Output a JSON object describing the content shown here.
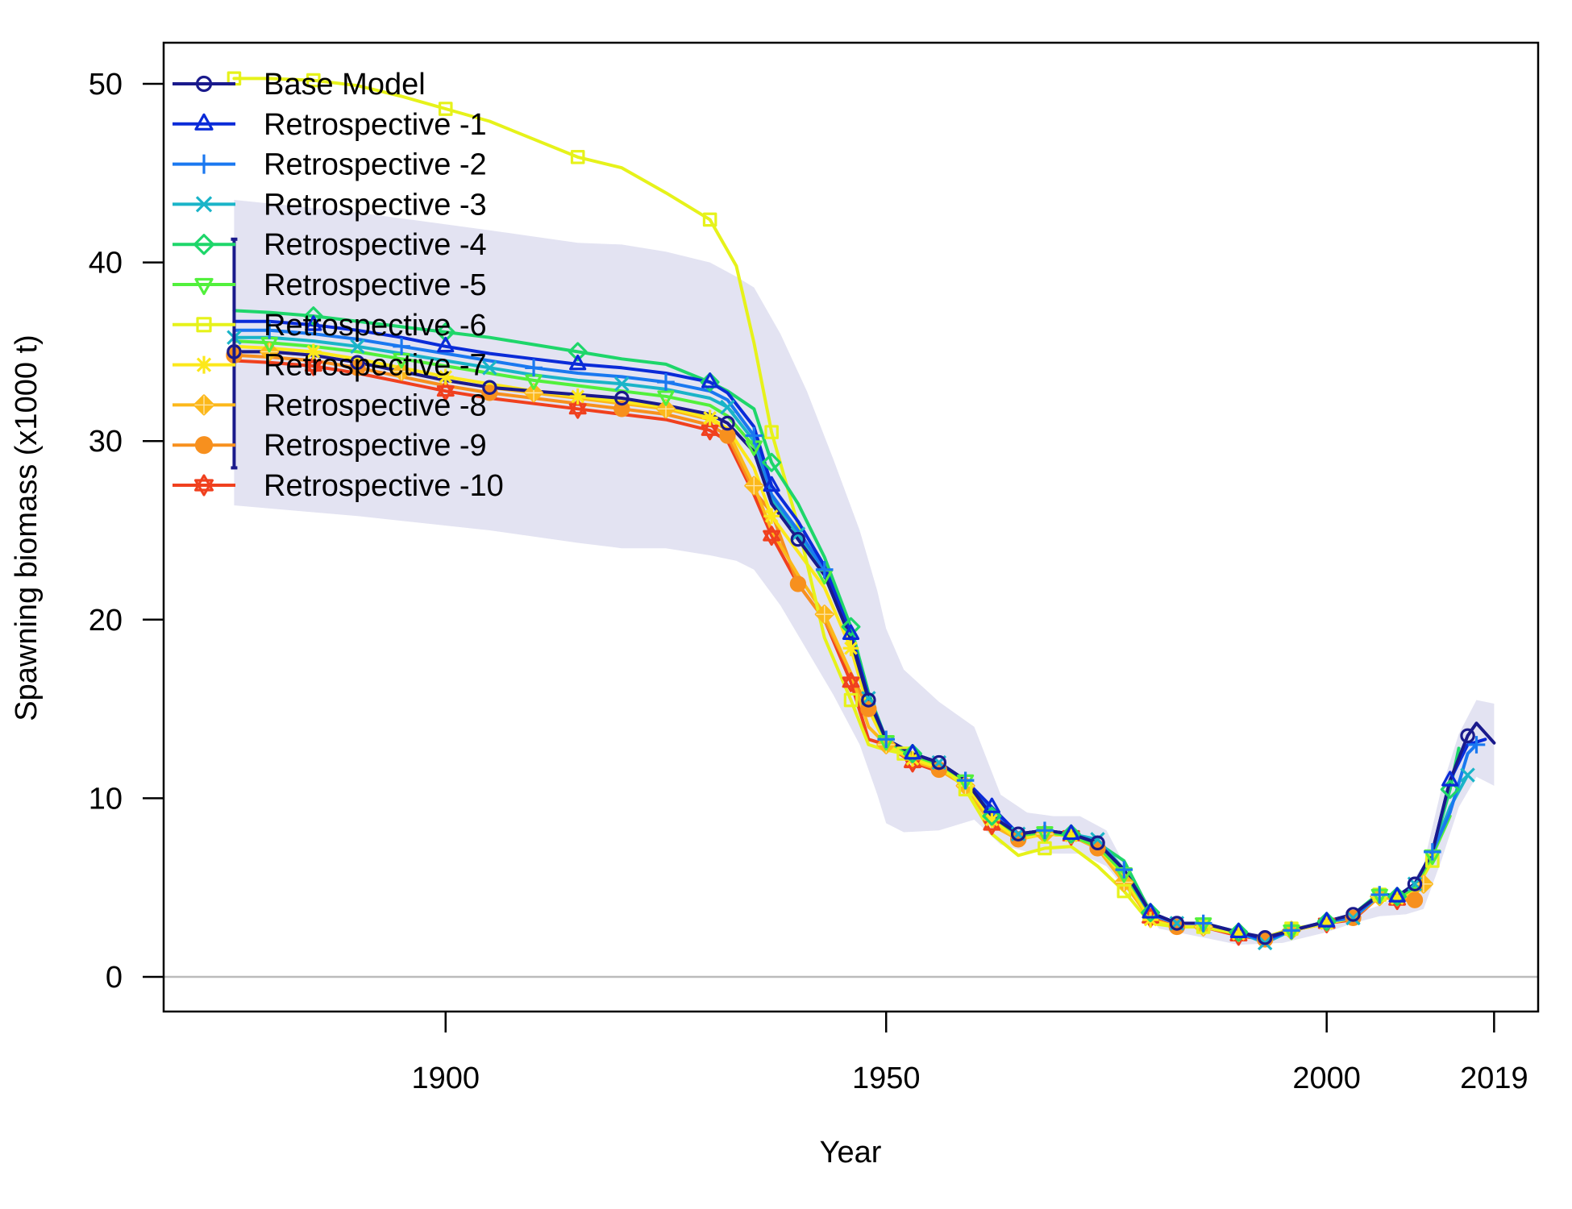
{
  "chart_data": {
    "type": "line",
    "xlabel": "Year",
    "ylabel": "Spawning biomass (x1000 t)",
    "x_ticks": [
      1900,
      1950,
      2000,
      2019
    ],
    "y_ticks": [
      0,
      10,
      20,
      30,
      40,
      50
    ],
    "xlim": [
      1868,
      2024
    ],
    "ylim": [
      -2,
      52
    ],
    "legend_position": "top-left",
    "confidence_band": {
      "color": "#E3E3F2",
      "x": [
        1876,
        1890,
        1905,
        1915,
        1920,
        1925,
        1930,
        1933,
        1935,
        1938,
        1941,
        1944,
        1947,
        1949,
        1950,
        1952,
        1956,
        1960,
        1963,
        1966,
        1969,
        1972,
        1975,
        1978,
        1981,
        1985,
        1990,
        1995,
        2000,
        2003,
        2006,
        2009,
        2011,
        2013,
        2015,
        2017,
        2019
      ],
      "lower": [
        26.4,
        25.8,
        25.0,
        24.3,
        24.0,
        24.0,
        23.6,
        23.3,
        22.8,
        20.8,
        18.3,
        15.8,
        13.0,
        10.2,
        8.6,
        8.1,
        8.2,
        8.8,
        7.4,
        7.0,
        6.9,
        6.9,
        6.2,
        4.4,
        2.7,
        2.3,
        1.8,
        1.9,
        2.5,
        3.0,
        3.4,
        3.5,
        3.8,
        6.5,
        9.5,
        11.2,
        10.7
      ],
      "upper": [
        43.5,
        42.8,
        41.8,
        41.1,
        41.0,
        40.6,
        40.0,
        39.2,
        38.6,
        36.0,
        32.8,
        29.0,
        25.0,
        21.6,
        19.5,
        17.2,
        15.4,
        14.0,
        10.2,
        9.2,
        9.0,
        9.0,
        8.2,
        5.4,
        3.3,
        2.9,
        2.4,
        2.5,
        3.2,
        3.5,
        4.0,
        4.8,
        6.3,
        10.5,
        13.6,
        15.5,
        15.3
      ]
    },
    "series": [
      {
        "name": "Base Model",
        "color": "#1A1A8C",
        "marker": "circle",
        "x": [
          1876,
          1880,
          1885,
          1890,
          1895,
          1900,
          1905,
          1910,
          1915,
          1920,
          1925,
          1930,
          1932,
          1935,
          1937,
          1940,
          1943,
          1946,
          1948,
          1950,
          1953,
          1956,
          1959,
          1962,
          1965,
          1968,
          1971,
          1974,
          1977,
          1980,
          1983,
          1986,
          1990,
          1993,
          1996,
          2000,
          2003,
          2006,
          2008,
          2010,
          2012,
          2014,
          2016,
          2017,
          2019
        ],
        "y": [
          35.0,
          35.0,
          34.8,
          34.4,
          33.9,
          33.4,
          33.0,
          32.8,
          32.6,
          32.4,
          32.0,
          31.5,
          31.0,
          29.4,
          26.5,
          24.5,
          22.5,
          18.9,
          15.5,
          13.3,
          12.5,
          12.0,
          11.0,
          9.0,
          8.0,
          8.2,
          8.0,
          7.5,
          6.0,
          3.6,
          3.0,
          3.0,
          2.5,
          2.2,
          2.6,
          3.1,
          3.5,
          4.6,
          4.5,
          5.2,
          7.0,
          11.0,
          13.5,
          14.2,
          13.1
        ]
      },
      {
        "name": "Retrospective -1",
        "color": "#0A2BD8",
        "marker": "triangle-up",
        "x": [
          1876,
          1880,
          1885,
          1890,
          1895,
          1900,
          1905,
          1910,
          1915,
          1920,
          1925,
          1930,
          1932,
          1935,
          1937,
          1940,
          1943,
          1946,
          1948,
          1950,
          1953,
          1956,
          1959,
          1962,
          1965,
          1968,
          1971,
          1974,
          1977,
          1980,
          1983,
          1986,
          1990,
          1993,
          1996,
          2000,
          2003,
          2006,
          2008,
          2010,
          2012,
          2014,
          2016,
          2018
        ],
        "y": [
          36.7,
          36.7,
          36.5,
          36.2,
          35.8,
          35.3,
          34.9,
          34.6,
          34.3,
          34.1,
          33.8,
          33.3,
          32.7,
          30.8,
          27.5,
          25.5,
          23.0,
          19.2,
          15.7,
          13.3,
          12.5,
          12.0,
          11.0,
          9.5,
          8.0,
          8.2,
          8.0,
          7.5,
          6.0,
          3.6,
          3.0,
          3.0,
          2.5,
          2.1,
          2.6,
          3.1,
          3.5,
          4.6,
          4.5,
          5.2,
          7.0,
          11.0,
          13.0,
          13.3
        ]
      },
      {
        "name": "Retrospective -2",
        "color": "#1A78F0",
        "marker": "plus",
        "x": [
          1876,
          1880,
          1885,
          1890,
          1895,
          1900,
          1905,
          1910,
          1915,
          1920,
          1925,
          1930,
          1932,
          1935,
          1937,
          1940,
          1943,
          1946,
          1948,
          1950,
          1953,
          1956,
          1959,
          1962,
          1965,
          1968,
          1971,
          1974,
          1977,
          1980,
          1983,
          1986,
          1990,
          1993,
          1996,
          2000,
          2003,
          2006,
          2008,
          2010,
          2012,
          2014,
          2016,
          2017
        ],
        "y": [
          36.2,
          36.2,
          36.0,
          35.7,
          35.3,
          34.9,
          34.5,
          34.1,
          33.8,
          33.6,
          33.3,
          32.8,
          32.3,
          30.3,
          27.0,
          25.0,
          22.8,
          19.1,
          15.6,
          13.3,
          12.5,
          12.0,
          11.0,
          9.2,
          8.0,
          8.2,
          8.0,
          7.5,
          6.0,
          3.5,
          3.0,
          3.0,
          2.5,
          2.0,
          2.6,
          3.1,
          3.3,
          4.6,
          4.5,
          5.2,
          7.0,
          9.2,
          12.5,
          13.0
        ]
      },
      {
        "name": "Retrospective -3",
        "color": "#1AB4C8",
        "marker": "cross",
        "x": [
          1876,
          1880,
          1885,
          1890,
          1895,
          1900,
          1905,
          1910,
          1915,
          1920,
          1925,
          1930,
          1932,
          1935,
          1937,
          1940,
          1943,
          1946,
          1948,
          1950,
          1953,
          1956,
          1959,
          1962,
          1965,
          1968,
          1971,
          1974,
          1977,
          1980,
          1983,
          1986,
          1990,
          1993,
          1996,
          2000,
          2003,
          2006,
          2008,
          2010,
          2012,
          2014,
          2016
        ],
        "y": [
          35.8,
          35.8,
          35.6,
          35.3,
          34.9,
          34.5,
          34.1,
          33.7,
          33.4,
          33.2,
          32.9,
          32.4,
          31.9,
          30.0,
          26.8,
          24.8,
          22.7,
          19.0,
          15.6,
          13.3,
          12.5,
          12.0,
          11.0,
          9.0,
          8.0,
          8.2,
          8.0,
          7.7,
          6.0,
          3.6,
          3.0,
          3.0,
          2.5,
          1.9,
          2.6,
          3.1,
          3.3,
          4.6,
          4.5,
          5.2,
          7.0,
          9.5,
          11.3
        ]
      },
      {
        "name": "Retrospective -4",
        "color": "#1ED66A",
        "marker": "diamond",
        "x": [
          1876,
          1880,
          1885,
          1890,
          1895,
          1900,
          1905,
          1910,
          1915,
          1920,
          1925,
          1930,
          1932,
          1935,
          1937,
          1940,
          1943,
          1946,
          1948,
          1950,
          1953,
          1956,
          1959,
          1962,
          1965,
          1968,
          1971,
          1974,
          1977,
          1980,
          1983,
          1986,
          1990,
          1993,
          1996,
          2000,
          2003,
          2006,
          2008,
          2010,
          2012,
          2014,
          2015
        ],
        "y": [
          37.3,
          37.2,
          37.0,
          36.7,
          36.4,
          36.1,
          35.8,
          35.4,
          35.0,
          34.6,
          34.3,
          33.3,
          32.8,
          31.8,
          28.8,
          26.5,
          23.5,
          19.6,
          15.9,
          13.3,
          12.5,
          12.0,
          11.0,
          9.0,
          8.0,
          8.2,
          8.0,
          7.5,
          6.5,
          3.6,
          3.0,
          3.0,
          2.5,
          2.0,
          2.6,
          3.1,
          3.5,
          4.7,
          4.5,
          5.2,
          7.0,
          10.5,
          12.8
        ]
      },
      {
        "name": "Retrospective -5",
        "color": "#52F03C",
        "marker": "triangle-down",
        "x": [
          1876,
          1880,
          1885,
          1890,
          1895,
          1900,
          1905,
          1910,
          1915,
          1920,
          1925,
          1930,
          1932,
          1935,
          1937,
          1940,
          1943,
          1946,
          1948,
          1950,
          1953,
          1956,
          1959,
          1962,
          1965,
          1968,
          1971,
          1974,
          1977,
          1980,
          1983,
          1986,
          1990,
          1993,
          1996,
          2000,
          2003,
          2006,
          2008,
          2010,
          2012,
          2014
        ],
        "y": [
          35.6,
          35.5,
          35.3,
          35.0,
          34.6,
          34.2,
          33.8,
          33.4,
          33.1,
          32.8,
          32.5,
          32.0,
          31.4,
          29.7,
          26.6,
          24.7,
          22.5,
          18.9,
          15.5,
          13.2,
          12.4,
          11.9,
          11.0,
          9.0,
          7.9,
          8.1,
          7.9,
          7.3,
          5.8,
          3.5,
          3.0,
          3.0,
          2.5,
          2.1,
          2.6,
          3.1,
          3.4,
          4.6,
          4.4,
          5.0,
          6.8,
          9.0
        ]
      },
      {
        "name": "Retrospective -6",
        "color": "#E6F21A",
        "marker": "square",
        "x": [
          1876,
          1878,
          1880,
          1885,
          1890,
          1895,
          1900,
          1905,
          1910,
          1915,
          1920,
          1925,
          1930,
          1933,
          1935,
          1937,
          1940,
          1943,
          1946,
          1948,
          1950,
          1952,
          1955,
          1957,
          1959,
          1962,
          1965,
          1968,
          1971,
          1974,
          1977,
          1980,
          1983,
          1986,
          1990,
          1993,
          1996,
          2000,
          2003,
          2006,
          2008,
          2010,
          2012,
          2013
        ],
        "y": [
          50.3,
          50.3,
          50.3,
          50.2,
          49.9,
          49.3,
          48.6,
          47.9,
          46.9,
          45.9,
          45.3,
          43.9,
          42.4,
          39.8,
          35.5,
          30.5,
          25.3,
          19.0,
          15.5,
          13.0,
          12.7,
          12.5,
          12.0,
          11.5,
          10.5,
          8.0,
          6.8,
          7.2,
          7.3,
          6.2,
          4.8,
          3.0,
          2.8,
          2.8,
          2.4,
          2.2,
          2.7,
          3.0,
          3.3,
          4.6,
          4.6,
          4.9,
          6.5,
          8.5
        ]
      },
      {
        "name": "Retrospective -7",
        "color": "#FCE81A",
        "marker": "asterisk",
        "x": [
          1876,
          1880,
          1885,
          1890,
          1895,
          1900,
          1905,
          1910,
          1915,
          1920,
          1925,
          1930,
          1932,
          1935,
          1937,
          1940,
          1943,
          1946,
          1948,
          1950,
          1953,
          1956,
          1959,
          1962,
          1965,
          1968,
          1971,
          1974,
          1977,
          1980,
          1983,
          1986,
          1990,
          1993,
          1996,
          2000,
          2003,
          2006,
          2008,
          2010,
          2012
        ],
        "y": [
          35.3,
          35.2,
          35.0,
          34.6,
          34.1,
          33.6,
          33.2,
          32.8,
          32.5,
          32.2,
          31.9,
          31.3,
          30.7,
          28.5,
          25.8,
          23.8,
          21.8,
          18.4,
          15.0,
          13.0,
          12.2,
          11.7,
          10.8,
          8.8,
          7.7,
          8.0,
          7.9,
          7.3,
          5.6,
          3.2,
          2.8,
          2.8,
          2.4,
          2.1,
          2.6,
          3.0,
          3.3,
          4.6,
          4.4,
          4.8,
          6.5
        ]
      },
      {
        "name": "Retrospective -8",
        "color": "#FCB81A",
        "marker": "diamond-plus",
        "x": [
          1876,
          1880,
          1885,
          1890,
          1895,
          1900,
          1905,
          1910,
          1915,
          1920,
          1925,
          1930,
          1932,
          1935,
          1937,
          1940,
          1943,
          1946,
          1948,
          1950,
          1953,
          1956,
          1959,
          1962,
          1965,
          1968,
          1971,
          1974,
          1977,
          1980,
          1983,
          1986,
          1990,
          1993,
          1996,
          2000,
          2003,
          2006,
          2008,
          2010,
          2011
        ],
        "y": [
          35.0,
          35.0,
          34.8,
          34.4,
          33.9,
          33.4,
          33.0,
          32.7,
          32.4,
          32.1,
          31.8,
          31.2,
          30.6,
          27.5,
          25.0,
          22.5,
          20.3,
          17.0,
          14.0,
          13.0,
          12.1,
          11.6,
          10.7,
          8.5,
          7.7,
          8.0,
          7.9,
          7.2,
          5.3,
          3.2,
          2.8,
          2.8,
          2.4,
          2.1,
          2.6,
          3.0,
          3.3,
          4.5,
          4.3,
          4.6,
          5.2
        ]
      },
      {
        "name": "Retrospective -9",
        "color": "#F7901E",
        "marker": "circle-filled",
        "x": [
          1876,
          1880,
          1885,
          1890,
          1895,
          1900,
          1905,
          1910,
          1915,
          1920,
          1925,
          1930,
          1932,
          1935,
          1937,
          1940,
          1943,
          1946,
          1948,
          1950,
          1953,
          1956,
          1959,
          1962,
          1965,
          1968,
          1971,
          1974,
          1977,
          1980,
          1983,
          1986,
          1990,
          1993,
          1996,
          2000,
          2003,
          2006,
          2008,
          2010
        ],
        "y": [
          34.8,
          34.7,
          34.5,
          34.1,
          33.6,
          33.1,
          32.7,
          32.4,
          32.1,
          31.8,
          31.5,
          30.9,
          30.3,
          27.2,
          26.0,
          22.0,
          20.0,
          17.0,
          15.0,
          13.0,
          12.1,
          11.6,
          10.7,
          8.5,
          7.7,
          8.0,
          7.9,
          7.2,
          5.3,
          3.2,
          2.8,
          2.8,
          2.4,
          2.1,
          2.6,
          3.0,
          3.3,
          4.5,
          4.3,
          4.3
        ]
      },
      {
        "name": "Retrospective -10",
        "color": "#F0401E",
        "marker": "star-of-david",
        "x": [
          1876,
          1880,
          1885,
          1890,
          1895,
          1900,
          1905,
          1910,
          1915,
          1920,
          1925,
          1930,
          1932,
          1935,
          1937,
          1940,
          1943,
          1946,
          1948,
          1950,
          1953,
          1956,
          1959,
          1962,
          1965,
          1968,
          1971,
          1974,
          1977,
          1980,
          1983,
          1986,
          1990,
          1993,
          1996,
          2000,
          2003,
          2006,
          2008,
          2009
        ],
        "y": [
          34.5,
          34.4,
          34.2,
          33.8,
          33.3,
          32.8,
          32.4,
          32.1,
          31.8,
          31.5,
          31.2,
          30.6,
          30.0,
          27.0,
          24.7,
          22.0,
          20.0,
          16.5,
          13.3,
          13.0,
          12.0,
          11.5,
          11.0,
          8.5,
          7.7,
          8.0,
          7.9,
          7.2,
          5.3,
          3.3,
          2.8,
          2.8,
          2.3,
          2.1,
          2.6,
          3.0,
          3.2,
          4.5,
          4.3,
          4.4
        ]
      }
    ],
    "error_bar": {
      "x": 1876,
      "low": 28.5,
      "high": 41.3,
      "color": "#1A1A8C"
    }
  }
}
